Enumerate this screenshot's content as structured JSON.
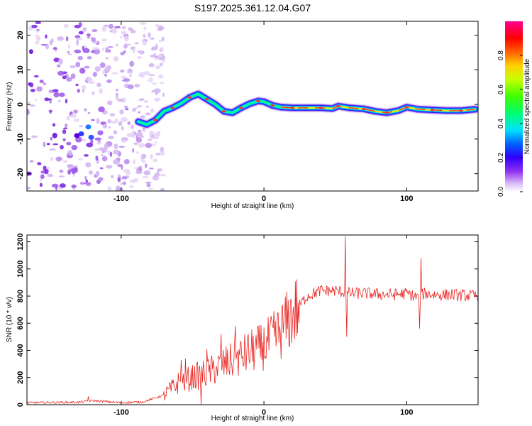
{
  "chart_data": [
    {
      "type": "heatmap",
      "title": "S197.2025.361.12.04.G07",
      "xlabel": "Height of straight line (km)",
      "ylabel": "Frequency (Hz)",
      "xlim": [
        -166,
        150
      ],
      "ylim": [
        -25,
        24
      ],
      "xticks": [
        -100,
        0,
        100
      ],
      "xtick_labels": [
        "-100",
        "0",
        "100"
      ],
      "yticks": [
        20,
        10,
        0,
        -10,
        -20
      ],
      "ytick_labels": [
        "20",
        "10",
        "0",
        "-10",
        "-20"
      ],
      "colorbar": {
        "label": "Normalized spectral amplitude",
        "range": [
          0,
          1
        ],
        "ticks": [
          0.0,
          0.2,
          0.4,
          0.6,
          0.8
        ],
        "tick_labels": [
          "0.0",
          "0.2",
          "0.4",
          "0.6",
          "0.8"
        ],
        "colors": [
          "#ffffff",
          "#c080f0",
          "#8000ff",
          "#0000ff",
          "#0080ff",
          "#00ffff",
          "#00ff80",
          "#00ff00",
          "#80ff00",
          "#ffff00",
          "#ff8000",
          "#ff0000",
          "#ff0080"
        ]
      },
      "ridge": {
        "name": "dominant frequency track",
        "x": [
          -88,
          -82,
          -76,
          -70,
          -64,
          -58,
          -52,
          -46,
          -40,
          -34,
          -28,
          -22,
          -16,
          -10,
          -4,
          0,
          6,
          12,
          20,
          30,
          40,
          48,
          52,
          60,
          70,
          78,
          86,
          94,
          100,
          108,
          118,
          128,
          138,
          148
        ],
        "y": [
          -5,
          -5.8,
          -4.5,
          -2,
          -1,
          0.3,
          2,
          3,
          1.5,
          0,
          -2,
          -2.4,
          -1,
          0.2,
          1,
          0.8,
          -0.3,
          -0.8,
          -1,
          -1,
          -1,
          -1.2,
          -0.5,
          -1,
          -1.3,
          -2,
          -2.4,
          -1.8,
          -0.8,
          -1.4,
          -1.6,
          -1.8,
          -1.8,
          -1.4
        ]
      },
      "noise_region_km": [
        -166,
        -80
      ]
    },
    {
      "type": "line",
      "xlabel": "Height of straight line (km)",
      "ylabel": "SNR (10 * v/v)",
      "xlim": [
        -166,
        150
      ],
      "ylim": [
        0,
        1250
      ],
      "xticks": [
        -100,
        0,
        100
      ],
      "xtick_labels": [
        "-100",
        "0",
        "100"
      ],
      "yticks": [
        0,
        200,
        400,
        600,
        800,
        1000,
        1200
      ],
      "ytick_labels": [
        "0",
        "200",
        "400",
        "600",
        "800",
        "1000",
        "1200"
      ],
      "series": [
        {
          "name": "SNR",
          "color": "#e8231f",
          "trend": {
            "x": [
              -166,
              -130,
              -120,
              -100,
              -85,
              -70,
              -60,
              -50,
              -40,
              -30,
              -20,
              -10,
              0,
              10,
              20,
              30,
              40,
              50,
              56,
              60,
              70,
              80,
              90,
              100,
              108,
              110,
              112,
              120,
              130,
              140,
              150
            ],
            "y": [
              15,
              18,
              30,
              15,
              20,
              70,
              160,
              200,
              230,
              290,
              330,
              390,
              430,
              520,
              660,
              800,
              840,
              840,
              830,
              820,
              820,
              815,
              810,
              820,
              790,
              800,
              820,
              810,
              810,
              805,
              800
            ]
          },
          "spikes": [
            {
              "x": -123,
              "y": 60
            },
            {
              "x": -58,
              "y": 330
            },
            {
              "x": -55,
              "y": 340
            },
            {
              "x": -44,
              "y": 0
            },
            {
              "x": -40,
              "y": 410
            },
            {
              "x": -30,
              "y": 520
            },
            {
              "x": -20,
              "y": 580
            },
            {
              "x": 57,
              "y": 1240
            },
            {
              "x": 58,
              "y": 500
            },
            {
              "x": 110,
              "y": 1080
            },
            {
              "x": 109,
              "y": 560
            }
          ]
        }
      ]
    }
  ]
}
